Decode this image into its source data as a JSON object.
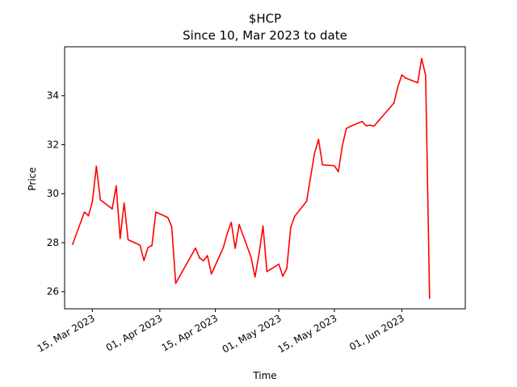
{
  "chart_data": {
    "type": "line",
    "title": "$HCP",
    "subtitle": "Since 10, Mar 2023 to date",
    "xlabel": "Time",
    "ylabel": "Price",
    "x_range": [
      "2023-03-08",
      "2023-06-17"
    ],
    "ylim": [
      25.3,
      36.0
    ],
    "y_ticks": [
      26,
      28,
      30,
      32,
      34
    ],
    "x_ticks": [
      {
        "date": "2023-03-15",
        "label": "15, Mar 2023"
      },
      {
        "date": "2023-04-01",
        "label": "01, Apr 2023"
      },
      {
        "date": "2023-04-15",
        "label": "15, Apr 2023"
      },
      {
        "date": "2023-05-01",
        "label": "01, May 2023"
      },
      {
        "date": "2023-05-15",
        "label": "15, May 2023"
      },
      {
        "date": "2023-06-01",
        "label": "01, Jun 2023"
      }
    ],
    "grid": false,
    "series": [
      {
        "color": "#ff0000",
        "x": [
          "2023-03-10",
          "2023-03-13",
          "2023-03-14",
          "2023-03-15",
          "2023-03-16",
          "2023-03-17",
          "2023-03-20",
          "2023-03-21",
          "2023-03-22",
          "2023-03-23",
          "2023-03-24",
          "2023-03-27",
          "2023-03-28",
          "2023-03-29",
          "2023-03-30",
          "2023-03-31",
          "2023-04-03",
          "2023-04-04",
          "2023-04-05",
          "2023-04-06",
          "2023-04-10",
          "2023-04-11",
          "2023-04-12",
          "2023-04-13",
          "2023-04-14",
          "2023-04-17",
          "2023-04-18",
          "2023-04-19",
          "2023-04-20",
          "2023-04-21",
          "2023-04-24",
          "2023-04-25",
          "2023-04-26",
          "2023-04-27",
          "2023-04-28",
          "2023-05-01",
          "2023-05-02",
          "2023-05-03",
          "2023-05-04",
          "2023-05-05",
          "2023-05-08",
          "2023-05-09",
          "2023-05-10",
          "2023-05-11",
          "2023-05-12",
          "2023-05-15",
          "2023-05-16",
          "2023-05-17",
          "2023-05-18",
          "2023-05-19",
          "2023-05-22",
          "2023-05-23",
          "2023-05-24",
          "2023-05-25",
          "2023-05-26",
          "2023-05-30",
          "2023-05-31",
          "2023-06-01",
          "2023-06-02",
          "2023-06-05",
          "2023-06-06",
          "2023-06-07",
          "2023-06-08"
        ],
        "y": [
          27.93,
          29.25,
          29.1,
          29.68,
          31.12,
          29.75,
          29.38,
          30.32,
          28.17,
          29.62,
          28.12,
          27.9,
          27.27,
          27.8,
          27.88,
          29.25,
          29.03,
          28.65,
          26.34,
          26.63,
          27.78,
          27.38,
          27.26,
          27.47,
          26.72,
          27.8,
          28.38,
          28.83,
          27.77,
          28.74,
          27.4,
          26.6,
          27.53,
          28.68,
          26.82,
          27.12,
          26.63,
          26.95,
          28.63,
          29.08,
          29.69,
          30.68,
          31.65,
          32.22,
          31.18,
          31.14,
          30.9,
          31.95,
          32.66,
          32.75,
          32.95,
          32.77,
          32.8,
          32.76,
          32.95,
          33.7,
          34.36,
          34.85,
          34.72,
          34.53,
          35.52,
          34.83,
          25.73
        ]
      }
    ]
  }
}
